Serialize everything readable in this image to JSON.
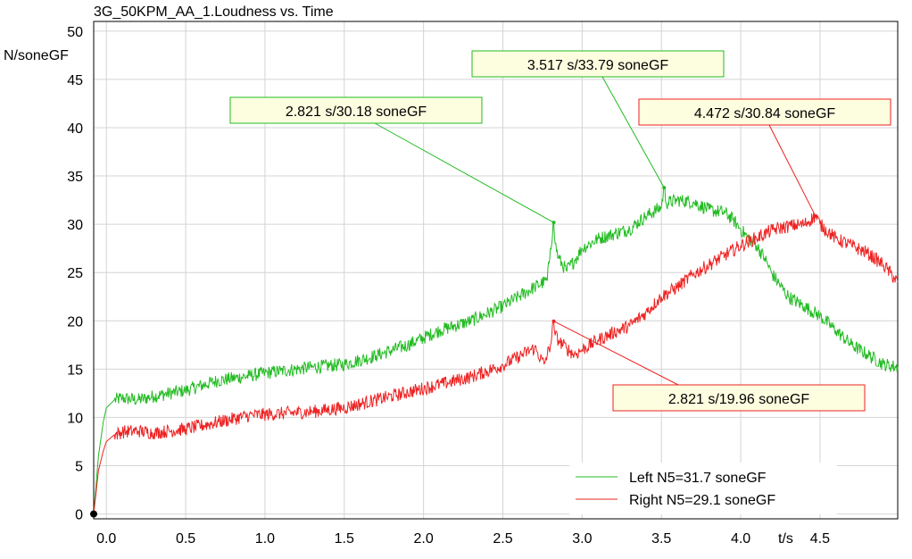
{
  "chart_data": {
    "type": "line",
    "title": "3G_50KPM_AA_1.Loudness vs. Time",
    "ylabel": "N/soneGF",
    "xlabel": "t/s",
    "xlim": [
      -0.08,
      4.99
    ],
    "ylim": [
      -0.5,
      51
    ],
    "xticks": [
      "0.0",
      "0.5",
      "1.0",
      "1.5",
      "2.0",
      "2.5",
      "3.0",
      "3.5",
      "4.0",
      "4.5"
    ],
    "yticks": [
      "0",
      "5",
      "10",
      "15",
      "20",
      "25",
      "30",
      "35",
      "40",
      "45",
      "50"
    ],
    "grid": true,
    "legend_position": "bottom-right",
    "series": [
      {
        "name": "Left N5=31.7 soneGF",
        "color": "#22bb22",
        "x": [
          -0.08,
          -0.05,
          -0.02,
          0.0,
          0.05,
          0.1,
          0.2,
          0.3,
          0.5,
          0.7,
          0.9,
          1.0,
          1.1,
          1.3,
          1.5,
          1.7,
          1.9,
          2.1,
          2.3,
          2.5,
          2.6,
          2.7,
          2.78,
          2.8,
          2.821,
          2.83,
          2.85,
          2.9,
          2.95,
          3.0,
          3.05,
          3.1,
          3.2,
          3.3,
          3.4,
          3.5,
          3.517,
          3.53,
          3.6,
          3.7,
          3.8,
          3.9,
          3.95,
          4.0,
          4.05,
          4.1,
          4.15,
          4.2,
          4.3,
          4.4,
          4.5,
          4.6,
          4.7,
          4.8,
          4.9,
          4.99
        ],
        "y": [
          0,
          6.0,
          9.5,
          11.0,
          11.8,
          12.0,
          11.8,
          12.2,
          12.8,
          13.8,
          14.3,
          14.6,
          14.8,
          15.2,
          15.5,
          16.4,
          17.5,
          19.0,
          20.0,
          21.5,
          22.5,
          23.5,
          24.2,
          27.5,
          30.18,
          28.0,
          26.5,
          25.2,
          26.2,
          27.5,
          28.0,
          28.5,
          29.0,
          29.5,
          30.8,
          31.8,
          33.79,
          32.2,
          32.5,
          32.3,
          31.5,
          31.2,
          30.5,
          29.5,
          28.5,
          27.8,
          26.5,
          24.8,
          22.5,
          21.5,
          20.5,
          19.0,
          17.5,
          16.5,
          15.5,
          15.2
        ]
      },
      {
        "name": "Right N5=29.1 soneGF",
        "color": "#ee2222",
        "x": [
          -0.08,
          -0.05,
          -0.02,
          0.0,
          0.05,
          0.1,
          0.2,
          0.3,
          0.5,
          0.7,
          0.9,
          1.1,
          1.3,
          1.5,
          1.7,
          1.9,
          2.1,
          2.3,
          2.5,
          2.6,
          2.7,
          2.76,
          2.8,
          2.821,
          2.83,
          2.86,
          2.9,
          2.95,
          3.0,
          3.1,
          3.2,
          3.3,
          3.4,
          3.5,
          3.6,
          3.7,
          3.8,
          3.9,
          4.0,
          4.1,
          4.2,
          4.3,
          4.4,
          4.472,
          4.5,
          4.6,
          4.7,
          4.8,
          4.9,
          4.99
        ],
        "y": [
          0,
          4.5,
          6.5,
          7.5,
          8.2,
          8.5,
          8.6,
          8.4,
          8.8,
          9.5,
          10.2,
          10.4,
          10.6,
          11.0,
          11.8,
          12.6,
          13.4,
          14.2,
          15.4,
          16.3,
          17.2,
          15.5,
          17.5,
          19.96,
          18.5,
          17.8,
          17.2,
          16.5,
          17.0,
          18.0,
          18.8,
          19.5,
          20.8,
          22.5,
          23.5,
          24.8,
          25.8,
          26.8,
          27.8,
          28.6,
          29.4,
          29.8,
          30.0,
          30.84,
          30.0,
          28.5,
          27.8,
          27.0,
          25.8,
          24.0
        ]
      }
    ],
    "markers": [
      {
        "series": 0,
        "x": 2.821,
        "y": 30.18,
        "label": "2.821 s/30.18 soneGF"
      },
      {
        "series": 0,
        "x": 3.517,
        "y": 33.79,
        "label": "3.517 s/33.79 soneGF"
      },
      {
        "series": 1,
        "x": 4.472,
        "y": 30.84,
        "label": "4.472 s/30.84 soneGF"
      },
      {
        "series": 1,
        "x": 2.821,
        "y": 19.96,
        "label": "2.821 s/19.96 soneGF"
      }
    ]
  }
}
